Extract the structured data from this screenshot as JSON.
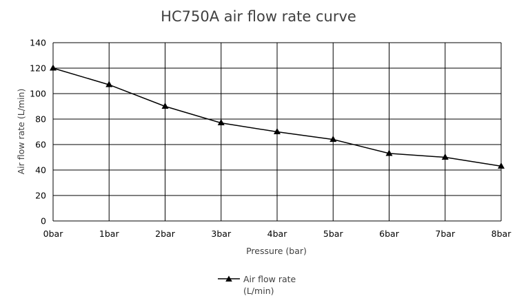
{
  "chart_data": {
    "type": "line",
    "title": "HC750A air flow rate curve",
    "xlabel": "Pressure (bar)",
    "ylabel": "Air flow rate (L/min)",
    "categories": [
      "0bar",
      "1bar",
      "2bar",
      "3bar",
      "4bar",
      "5bar",
      "6bar",
      "7bar",
      "8bar"
    ],
    "series": [
      {
        "name": "Air flow rate (L/min)",
        "legend_lines": [
          "Air flow rate",
          "(L/min)"
        ],
        "values": [
          120,
          107,
          90,
          77,
          70,
          64,
          53,
          50,
          43
        ],
        "color": "#000000",
        "marker": "triangle"
      }
    ],
    "ylim": [
      0,
      140
    ],
    "yticks": [
      0,
      20,
      40,
      60,
      80,
      100,
      120,
      140
    ],
    "grid": true,
    "legend_position": "bottom"
  }
}
